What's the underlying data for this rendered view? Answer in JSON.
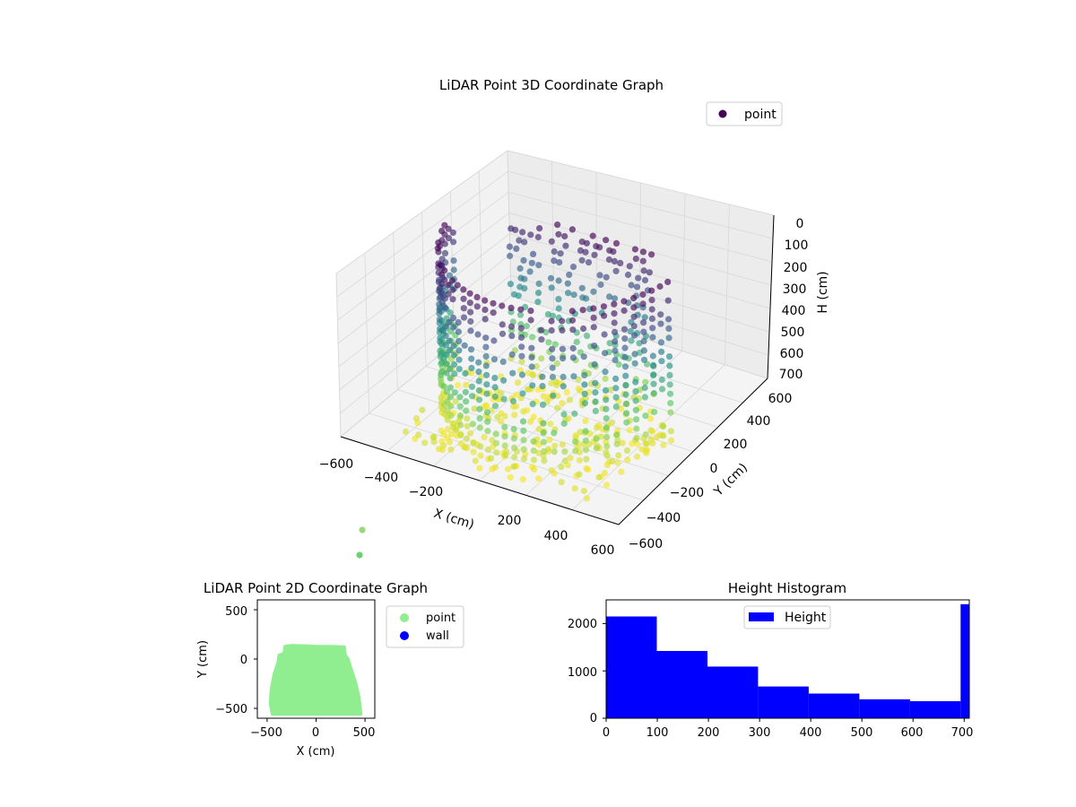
{
  "chart_data": [
    {
      "type": "scatter3d",
      "title": "LiDAR Point 3D Coordinate Graph",
      "xlabel": "X (cm)",
      "ylabel": "Y (cm)",
      "zlabel": "H (cm)",
      "xlim": [
        -600,
        600
      ],
      "ylim": [
        -600,
        600
      ],
      "zlim": [
        700,
        0
      ],
      "xticks": [
        "−600",
        "−400",
        "−200",
        "0",
        "200",
        "400",
        "600"
      ],
      "yticks": [
        "−600",
        "−400",
        "−200",
        "0",
        "200",
        "400",
        "600"
      ],
      "zticks": [
        "0",
        "100",
        "200",
        "300",
        "400",
        "500",
        "600",
        "700"
      ],
      "legend": [
        {
          "label": "point",
          "color": "#440154"
        }
      ],
      "legend_position": "top-right",
      "colormap": "viridis",
      "grid": true
    },
    {
      "type": "scatter",
      "title": "LiDAR Point 2D Coordinate Graph",
      "xlabel": "X (cm)",
      "ylabel": "Y (cm)",
      "xlim": [
        -600,
        600
      ],
      "ylim": [
        -600,
        600
      ],
      "xticks": [
        "−500",
        "0",
        "500"
      ],
      "yticks": [
        "−500",
        "0",
        "500"
      ],
      "legend": [
        {
          "label": "point",
          "color": "#90ee90"
        },
        {
          "label": "wall",
          "color": "#0000ff"
        }
      ],
      "legend_position": "outside-right",
      "series": [
        {
          "name": "point",
          "color": "#90ee90",
          "outline": [
            [
              -450,
              -560
            ],
            [
              -470,
              -450
            ],
            [
              -460,
              -300
            ],
            [
              -430,
              -150
            ],
            [
              -390,
              -30
            ],
            [
              -380,
              40
            ],
            [
              -330,
              60
            ],
            [
              -320,
              130
            ],
            [
              -250,
              140
            ],
            [
              -100,
              135
            ],
            [
              0,
              130
            ],
            [
              150,
              130
            ],
            [
              290,
              125
            ],
            [
              300,
              40
            ],
            [
              330,
              0
            ],
            [
              360,
              -100
            ],
            [
              400,
              -220
            ],
            [
              440,
              -380
            ],
            [
              460,
              -560
            ]
          ]
        }
      ]
    },
    {
      "type": "histogram",
      "title": "Height Histogram",
      "xlabel": "",
      "ylabel": "",
      "xlim": [
        0,
        710
      ],
      "ylim": [
        0,
        2500
      ],
      "xticks": [
        "0",
        "100",
        "200",
        "300",
        "400",
        "500",
        "600",
        "700"
      ],
      "yticks": [
        "0",
        "1000",
        "2000"
      ],
      "legend": [
        {
          "label": "Height",
          "color": "#0000ff"
        }
      ],
      "legend_position": "top-center",
      "series": [
        {
          "name": "Height",
          "color": "#0000ff",
          "bins": [
            [
              0,
              99,
              2150
            ],
            [
              99,
              198,
              1420
            ],
            [
              198,
              297,
              1090
            ],
            [
              297,
              396,
              670
            ],
            [
              396,
              495,
              520
            ],
            [
              495,
              594,
              400
            ],
            [
              594,
              693,
              360
            ],
            [
              693,
              710,
              2410
            ]
          ]
        }
      ]
    }
  ]
}
